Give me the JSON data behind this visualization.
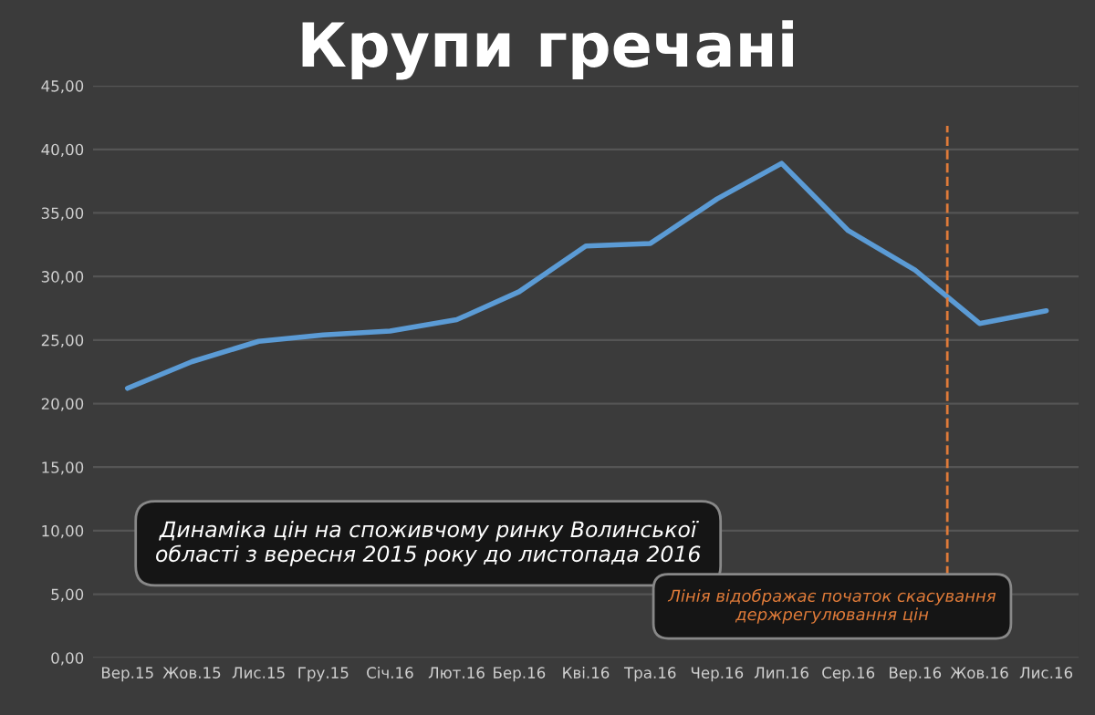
{
  "chart_data": {
    "type": "line",
    "title": "Крупи гречані",
    "x": [
      "2015-09",
      "2015-10",
      "2015-11",
      "2015-12",
      "2016-01",
      "2016-02",
      "2016-03",
      "2016-04",
      "2016-05",
      "2016-06",
      "2016-07",
      "2016-08",
      "2016-09",
      "2016-10",
      "2016-11"
    ],
    "series": [
      {
        "color": "#5b9bd5",
        "values": [
          21.2,
          23.3,
          24.9,
          25.4,
          25.7,
          26.6,
          28.8,
          32.4,
          32.6,
          36.1,
          38.9,
          33.6,
          30.5,
          26.3,
          27.3
        ]
      }
    ],
    "xlim": [
      "2015-08-16",
      "2016-11-16"
    ],
    "xticks": [
      {
        "value": "2015-09",
        "label": "Вер.15"
      },
      {
        "value": "2015-10",
        "label": "Жов.15"
      },
      {
        "value": "2015-11",
        "label": "Лис.15"
      },
      {
        "value": "2015-12",
        "label": "Гру.15"
      },
      {
        "value": "2016-01",
        "label": "Січ.16"
      },
      {
        "value": "2016-02",
        "label": "Лют.16"
      },
      {
        "value": "2016-03",
        "label": "Бер.16"
      },
      {
        "value": "2016-04",
        "label": "Кві.16"
      },
      {
        "value": "2016-05",
        "label": "Тра.16"
      },
      {
        "value": "2016-06",
        "label": "Чер.16"
      },
      {
        "value": "2016-07",
        "label": "Лип.16"
      },
      {
        "value": "2016-08",
        "label": "Сер.16"
      },
      {
        "value": "2016-09",
        "label": "Вер.16"
      },
      {
        "value": "2016-10",
        "label": "Жов.16"
      },
      {
        "value": "2016-11",
        "label": "Лис.16"
      }
    ],
    "ylim": [
      0,
      45
    ],
    "yticks": [
      {
        "value": 0,
        "label": "0,00"
      },
      {
        "value": 5,
        "label": "5,00"
      },
      {
        "value": 10,
        "label": "10,00"
      },
      {
        "value": 15,
        "label": "15,00"
      },
      {
        "value": 20,
        "label": "20,00"
      },
      {
        "value": 25,
        "label": "25,00"
      },
      {
        "value": 30,
        "label": "30,00"
      },
      {
        "value": 35,
        "label": "35,00"
      },
      {
        "value": 40,
        "label": "40,00"
      },
      {
        "value": 45,
        "label": "45,00"
      }
    ],
    "grid": "y",
    "marker": "none",
    "line_style": "solid",
    "ref_lines": [
      {
        "axis": "x",
        "value": "2016-09-16",
        "color": "#e07b39",
        "line_style": "dashed"
      }
    ],
    "annotations": [
      "Динаміка цін на споживчому ринку Волинської області з вересня 2015 року до листопада 2016",
      "Лінія відображає початок скасування держрегулювання цін"
    ]
  }
}
